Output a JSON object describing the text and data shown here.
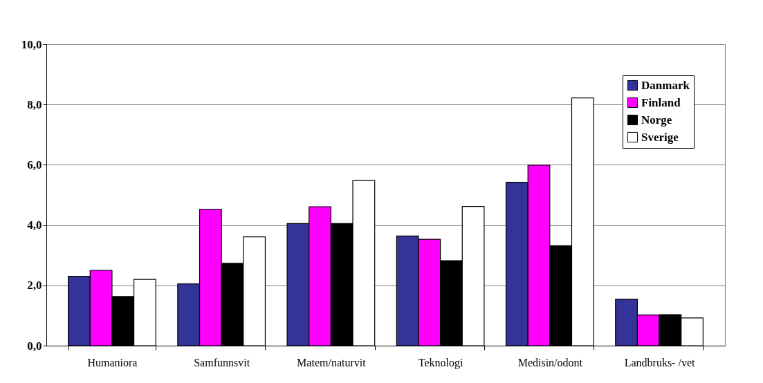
{
  "chart_data": {
    "type": "bar",
    "categories": [
      "Humaniora",
      "Samfunnsvit",
      "Matem/naturvit",
      "Teknologi",
      "Medisin/odont",
      "Landbruks- /vet"
    ],
    "series": [
      {
        "name": "Danmark",
        "color": "#333399",
        "values": [
          2.3,
          2.05,
          4.05,
          3.64,
          5.42,
          1.54
        ]
      },
      {
        "name": "Finland",
        "color": "#ff00ff",
        "values": [
          2.5,
          4.52,
          4.61,
          3.53,
          5.99,
          1.02
        ]
      },
      {
        "name": "Norge",
        "color": "#000000",
        "values": [
          1.63,
          2.73,
          4.05,
          2.82,
          3.32,
          1.03
        ]
      },
      {
        "name": "Sverige",
        "color": "#ffffff",
        "values": [
          2.2,
          3.61,
          5.48,
          4.62,
          8.22,
          0.92
        ]
      }
    ],
    "ylim": [
      0,
      10
    ],
    "yticks": [
      {
        "value": 0,
        "label": "0,0"
      },
      {
        "value": 2,
        "label": "2,0"
      },
      {
        "value": 4,
        "label": "4,0"
      },
      {
        "value": 6,
        "label": "6,0"
      },
      {
        "value": 8,
        "label": "8,0"
      },
      {
        "value": 10,
        "label": "10,0"
      }
    ],
    "grid": "y",
    "legend": "top right"
  }
}
